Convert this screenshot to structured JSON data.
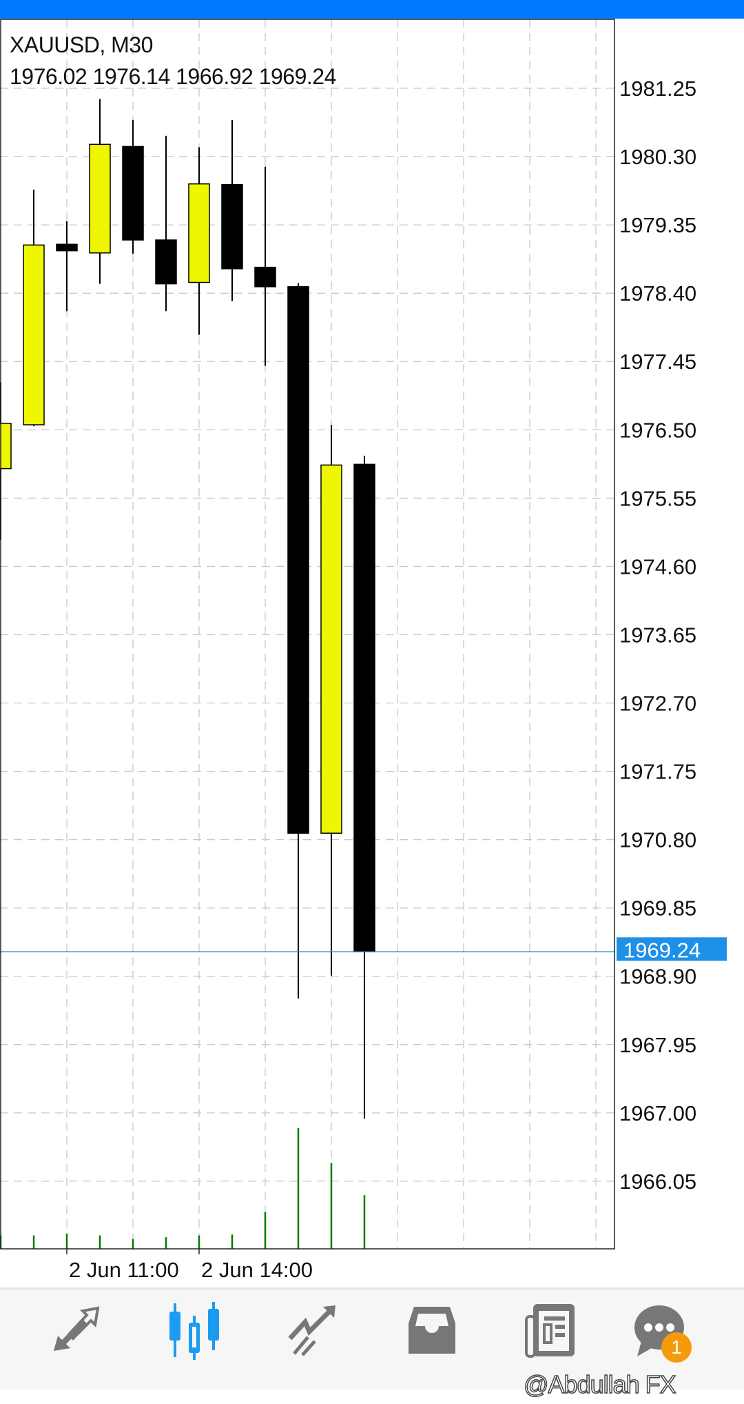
{
  "header": {
    "symbol_timeframe": "XAUUSD, M30",
    "ohlc": "1976.02 1976.14 1966.92 1969.24"
  },
  "colors": {
    "bull": "#eef600",
    "bear": "#000000",
    "volume": "#007a00",
    "price_line": "#2a8fd0",
    "accent": "#007aff",
    "badge": "#f59a0c"
  },
  "chart_data": {
    "type": "candlestick",
    "symbol": "XAUUSD",
    "timeframe": "M30",
    "ylim": [
      1965.4,
      1982.0
    ],
    "y_ticks": [
      "1981.25",
      "1980.30",
      "1979.35",
      "1978.40",
      "1977.45",
      "1976.50",
      "1975.55",
      "1974.60",
      "1973.65",
      "1972.70",
      "1971.75",
      "1970.80",
      "1969.85",
      "1968.90",
      "1967.95",
      "1967.00",
      "1966.05"
    ],
    "x_labels": [
      {
        "label": "2 Jun 11:00",
        "index": 2
      },
      {
        "label": "2 Jun 14:00",
        "index": 6
      }
    ],
    "current_price": "1969.24",
    "grid": true,
    "candles": [
      {
        "o": 1975.96,
        "h": 1977.16,
        "l": 1974.97,
        "c": 1976.59,
        "v": 15
      },
      {
        "o": 1976.57,
        "h": 1979.84,
        "l": 1976.55,
        "c": 1979.07,
        "v": 15
      },
      {
        "o": 1979.08,
        "h": 1979.4,
        "l": 1978.15,
        "c": 1978.99,
        "v": 17
      },
      {
        "o": 1978.96,
        "h": 1981.1,
        "l": 1978.53,
        "c": 1980.47,
        "v": 15
      },
      {
        "o": 1980.44,
        "h": 1980.81,
        "l": 1978.95,
        "c": 1979.14,
        "v": 11
      },
      {
        "o": 1979.14,
        "h": 1980.59,
        "l": 1978.15,
        "c": 1978.53,
        "v": 13
      },
      {
        "o": 1978.55,
        "h": 1980.43,
        "l": 1977.82,
        "c": 1979.92,
        "v": 15
      },
      {
        "o": 1979.91,
        "h": 1980.81,
        "l": 1978.29,
        "c": 1978.74,
        "v": 16
      },
      {
        "o": 1978.76,
        "h": 1980.16,
        "l": 1977.39,
        "c": 1978.49,
        "v": 41
      },
      {
        "o": 1978.49,
        "h": 1978.54,
        "l": 1968.59,
        "c": 1970.89,
        "v": 135
      },
      {
        "o": 1970.89,
        "h": 1976.57,
        "l": 1968.91,
        "c": 1976.01,
        "v": 96
      },
      {
        "o": 1976.02,
        "h": 1976.14,
        "l": 1966.92,
        "c": 1969.24,
        "v": 60
      }
    ]
  },
  "nav": {
    "items": [
      {
        "icon": "quotes-arrows-icon"
      },
      {
        "icon": "chart-candles-icon",
        "active": true
      },
      {
        "icon": "trade-icon"
      },
      {
        "icon": "history-inbox-icon"
      },
      {
        "icon": "news-icon"
      },
      {
        "icon": "messages-icon",
        "badge": "1"
      }
    ]
  },
  "watermark": "@Abdullah FX"
}
